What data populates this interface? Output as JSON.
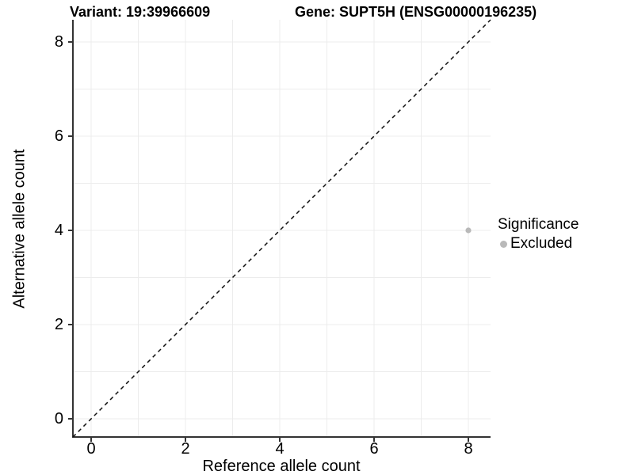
{
  "figure": {
    "title_left": "Variant: 19:39966609",
    "title_right": "Gene: SUPT5H (ENSG00000196235)"
  },
  "axes": {
    "x": {
      "label": "Reference allele count",
      "ticks": [
        "0",
        "2",
        "4",
        "6",
        "8"
      ]
    },
    "y": {
      "label": "Alternative allele count",
      "ticks": [
        "0",
        "2",
        "4",
        "6",
        "8"
      ]
    }
  },
  "legend": {
    "title": "Significance",
    "entries": [
      {
        "label": "Excluded",
        "color": "#b9b9b9"
      }
    ]
  },
  "colors": {
    "background": "#ffffff",
    "gridline": "#ececec",
    "axis_line": "#333333",
    "reference_line": "#111111",
    "point": "#b9b9b9",
    "text": "#000000"
  },
  "chart_data": {
    "type": "scatter",
    "title": "Variant: 19:39966609 | Gene: SUPT5H (ENSG00000196235)",
    "xlabel": "Reference allele count",
    "ylabel": "Alternative allele count",
    "xlim": [
      -0.4,
      8.47
    ],
    "ylim": [
      -0.4,
      8.47
    ],
    "x_major_ticks": [
      0,
      2,
      4,
      6,
      8
    ],
    "y_major_ticks": [
      0,
      2,
      4,
      6,
      8
    ],
    "grid_interval": 1,
    "grid": true,
    "reference_line": {
      "equation": "y = x",
      "style": "dashed",
      "color": "#111111"
    },
    "legend_position": "right",
    "series": [
      {
        "name": "Excluded",
        "color": "#b9b9b9",
        "points": [
          {
            "x": 8,
            "y": 4
          }
        ]
      }
    ]
  }
}
